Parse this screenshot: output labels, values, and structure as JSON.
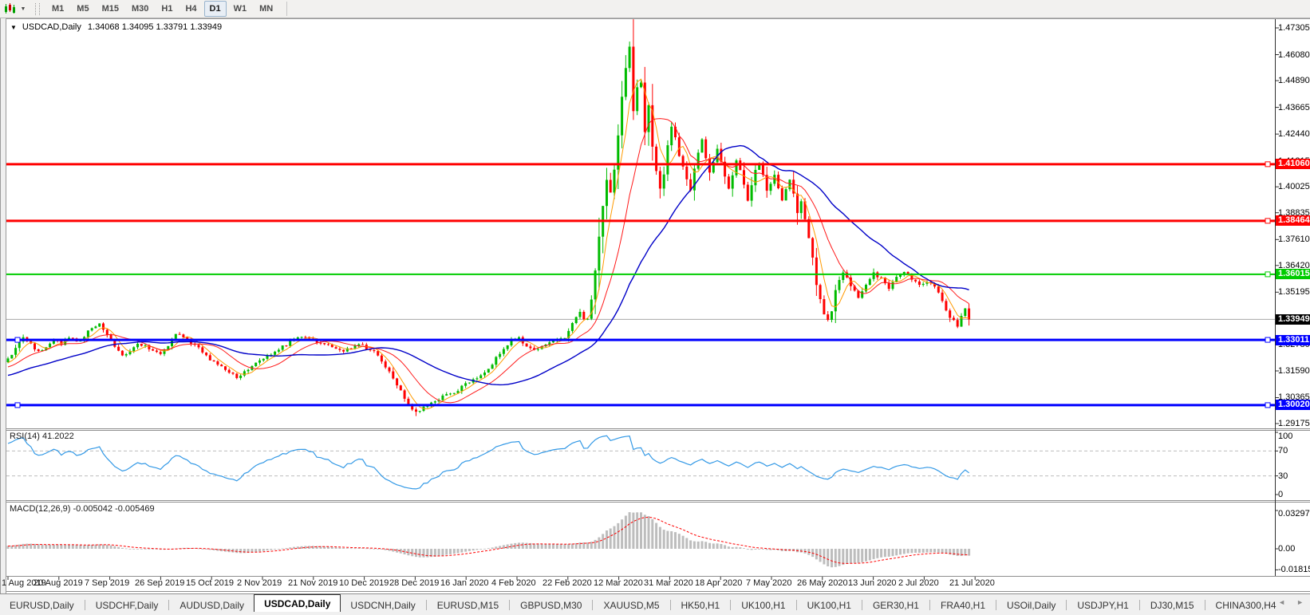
{
  "toolbar": {
    "chart_icon": "mini-candles",
    "dropdown_arrow": "▼",
    "timeframes": [
      "M1",
      "M5",
      "M15",
      "M30",
      "H1",
      "H4",
      "D1",
      "W1",
      "MN"
    ],
    "selected_timeframe": "D1"
  },
  "chart_window": {
    "title_arrow": "▼",
    "symbol": "USDCAD,Daily",
    "quotes": "1.34068 1.34095 1.33791 1.33949",
    "open": "1.34068",
    "high": "1.34095",
    "low": "1.33791",
    "close": "1.33949"
  },
  "price_axis": {
    "ticks": [
      "1.47305",
      "1.46080",
      "1.44890",
      "1.43665",
      "1.42440",
      "1.41215",
      "1.40025",
      "1.38835",
      "1.37610",
      "1.36420",
      "1.35195",
      "1.33970",
      "1.32780",
      "1.31590",
      "1.30365",
      "1.29175"
    ]
  },
  "horizontal_lines": [
    {
      "value": "1.41060",
      "price": 1.4106,
      "color": "#ff0000",
      "thickness": 3
    },
    {
      "value": "1.38464",
      "price": 1.38464,
      "color": "#ff0000",
      "thickness": 3
    },
    {
      "value": "1.36015",
      "price": 1.36015,
      "color": "#00cc00",
      "thickness": 2
    },
    {
      "value": "1.33011",
      "price": 1.33011,
      "color": "#0000ff",
      "thickness": 3,
      "left_handle": true
    },
    {
      "value": "1.30020",
      "price": 1.3002,
      "color": "#0000ff",
      "thickness": 3,
      "left_handle": true
    }
  ],
  "current_price": {
    "value": "1.33949",
    "price": 1.33949,
    "badge_bg": "#000000",
    "line_color": "#a8a8a8"
  },
  "rsi_panel": {
    "label": "RSI(14) 41.2022",
    "indicator": "RSI",
    "period": 14,
    "value": 41.2022,
    "axis_labels": [
      "100",
      "70",
      "30",
      "0"
    ],
    "axis_values": [
      100,
      70,
      30,
      0
    ],
    "level_lines": [
      70,
      30
    ],
    "line_color": "#3399e6",
    "level_color": "#bcbcbc"
  },
  "macd_panel": {
    "label": "MACD(12,26,9) -0.005042 -0.005469",
    "indicator": "MACD",
    "fast": 12,
    "slow": 26,
    "signal_period": 9,
    "macd_value": -0.005042,
    "signal_value": -0.005469,
    "axis_labels": [
      "0.032972",
      "0.00",
      "-0.018154"
    ],
    "axis_values": [
      0.032972,
      0,
      -0.018154
    ],
    "histogram_color": "#bdbdbd",
    "signal_color": "#ff0000"
  },
  "date_axis": {
    "labels": [
      "1 Aug 2019",
      "20 Aug 2019",
      "7 Sep 2019",
      "26 Sep 2019",
      "15 Oct 2019",
      "2 Nov 2019",
      "21 Nov 2019",
      "10 Dec 2019",
      "28 Dec 2019",
      "16 Jan 2020",
      "4 Feb 2020",
      "22 Feb 2020",
      "12 Mar 2020",
      "31 Mar 2020",
      "18 Apr 2020",
      "7 May 2020",
      "26 May 2020",
      "13 Jun 2020",
      "2 Jul 2020",
      "21 Jul 2020"
    ]
  },
  "tab_bar": {
    "tabs": [
      "EURUSD,Daily",
      "USDCHF,Daily",
      "AUDUSD,Daily",
      "USDCAD,Daily",
      "USDCNH,Daily",
      "EURUSD,M15",
      "GBPUSD,M30",
      "XAUUSD,M5",
      "HK50,H1",
      "UK100,H1",
      "UK100,H1",
      "GER30,H1",
      "FRA40,H1",
      "USOil,Daily",
      "USDJPY,H1",
      "DJ30,M15",
      "CHINA300,H4"
    ],
    "selected_tab": "USDCAD,Daily",
    "scroll_left_icon": "◄",
    "scroll_right_icon": "►"
  },
  "chart_data": {
    "type": "candlestick",
    "symbol": "USDCAD",
    "timeframe": "Daily",
    "ylim": [
      1.29175,
      1.47305
    ],
    "bar_count": 253,
    "up_color": "#00bb00",
    "down_color": "#ff0000",
    "moving_averages": [
      {
        "period": 5,
        "color": "#ff9a00",
        "width": 1
      },
      {
        "period": 13,
        "color": "#ff1a1a",
        "width": 1
      },
      {
        "period": 34,
        "color": "#0000c8",
        "width": 1.4
      }
    ],
    "extremes": {
      "peak_index": 163,
      "peak_high": 1.4668,
      "trough_index": 107,
      "trough_low": 1.2952
    },
    "close_anchors": [
      [
        0,
        1.3215
      ],
      [
        2,
        1.3265
      ],
      [
        4,
        1.331
      ],
      [
        6,
        1.328
      ],
      [
        8,
        1.3245
      ],
      [
        10,
        1.326
      ],
      [
        12,
        1.33
      ],
      [
        14,
        1.3285
      ],
      [
        16,
        1.331
      ],
      [
        18,
        1.329
      ],
      [
        20,
        1.332
      ],
      [
        22,
        1.3355
      ],
      [
        24,
        1.338
      ],
      [
        26,
        1.333
      ],
      [
        28,
        1.327
      ],
      [
        30,
        1.3225
      ],
      [
        32,
        1.325
      ],
      [
        34,
        1.328
      ],
      [
        36,
        1.327
      ],
      [
        38,
        1.325
      ],
      [
        40,
        1.324
      ],
      [
        42,
        1.328
      ],
      [
        44,
        1.333
      ],
      [
        46,
        1.331
      ],
      [
        48,
        1.329
      ],
      [
        50,
        1.3265
      ],
      [
        52,
        1.3225
      ],
      [
        54,
        1.3195
      ],
      [
        56,
        1.3175
      ],
      [
        58,
        1.315
      ],
      [
        60,
        1.313
      ],
      [
        62,
        1.3155
      ],
      [
        64,
        1.318
      ],
      [
        66,
        1.321
      ],
      [
        68,
        1.323
      ],
      [
        70,
        1.3245
      ],
      [
        72,
        1.327
      ],
      [
        74,
        1.329
      ],
      [
        76,
        1.3305
      ],
      [
        78,
        1.331
      ],
      [
        80,
        1.33
      ],
      [
        82,
        1.329
      ],
      [
        84,
        1.328
      ],
      [
        86,
        1.326
      ],
      [
        88,
        1.324
      ],
      [
        90,
        1.327
      ],
      [
        92,
        1.3285
      ],
      [
        94,
        1.326
      ],
      [
        96,
        1.3245
      ],
      [
        98,
        1.3205
      ],
      [
        100,
        1.316
      ],
      [
        102,
        1.31
      ],
      [
        104,
        1.303
      ],
      [
        106,
        1.2985
      ],
      [
        107,
        1.297
      ],
      [
        108,
        1.298
      ],
      [
        110,
        1.2995
      ],
      [
        112,
        1.302
      ],
      [
        114,
        1.3045
      ],
      [
        116,
        1.306
      ],
      [
        118,
        1.307
      ],
      [
        120,
        1.31
      ],
      [
        122,
        1.3115
      ],
      [
        124,
        1.314
      ],
      [
        126,
        1.3165
      ],
      [
        128,
        1.3215
      ],
      [
        130,
        1.326
      ],
      [
        132,
        1.3295
      ],
      [
        134,
        1.3305
      ],
      [
        136,
        1.3275
      ],
      [
        138,
        1.3255
      ],
      [
        140,
        1.3265
      ],
      [
        142,
        1.329
      ],
      [
        144,
        1.33
      ],
      [
        146,
        1.331
      ],
      [
        148,
        1.338
      ],
      [
        150,
        1.343
      ],
      [
        151,
        1.339
      ],
      [
        152,
        1.34
      ],
      [
        153,
        1.348
      ],
      [
        154,
        1.362
      ],
      [
        155,
        1.378
      ],
      [
        156,
        1.392
      ],
      [
        157,
        1.403
      ],
      [
        158,
        1.397
      ],
      [
        159,
        1.408
      ],
      [
        160,
        1.423
      ],
      [
        161,
        1.442
      ],
      [
        162,
        1.455
      ],
      [
        163,
        1.464
      ],
      [
        164,
        1.435
      ],
      [
        165,
        1.446
      ],
      [
        166,
        1.448
      ],
      [
        167,
        1.426
      ],
      [
        168,
        1.438
      ],
      [
        169,
        1.418
      ],
      [
        170,
        1.408
      ],
      [
        171,
        1.399
      ],
      [
        172,
        1.406
      ],
      [
        173,
        1.419
      ],
      [
        174,
        1.428
      ],
      [
        175,
        1.423
      ],
      [
        176,
        1.415
      ],
      [
        177,
        1.409
      ],
      [
        178,
        1.403
      ],
      [
        179,
        1.398
      ],
      [
        180,
        1.409
      ],
      [
        181,
        1.416
      ],
      [
        182,
        1.422
      ],
      [
        183,
        1.413
      ],
      [
        184,
        1.406
      ],
      [
        185,
        1.411
      ],
      [
        186,
        1.418
      ],
      [
        187,
        1.412
      ],
      [
        188,
        1.405
      ],
      [
        189,
        1.399
      ],
      [
        190,
        1.406
      ],
      [
        191,
        1.413
      ],
      [
        192,
        1.408
      ],
      [
        193,
        1.402
      ],
      [
        194,
        1.394
      ],
      [
        195,
        1.401
      ],
      [
        196,
        1.408
      ],
      [
        197,
        1.411
      ],
      [
        198,
        1.405
      ],
      [
        199,
        1.398
      ],
      [
        200,
        1.402
      ],
      [
        201,
        1.406
      ],
      [
        202,
        1.399
      ],
      [
        203,
        1.394
      ],
      [
        204,
        1.399
      ],
      [
        205,
        1.403
      ],
      [
        206,
        1.397
      ],
      [
        207,
        1.389
      ],
      [
        208,
        1.393
      ],
      [
        209,
        1.385
      ],
      [
        210,
        1.376
      ],
      [
        211,
        1.368
      ],
      [
        212,
        1.356
      ],
      [
        213,
        1.348
      ],
      [
        214,
        1.342
      ],
      [
        215,
        1.339
      ],
      [
        216,
        1.344
      ],
      [
        217,
        1.3535
      ],
      [
        219,
        1.361
      ],
      [
        221,
        1.3555
      ],
      [
        223,
        1.35
      ],
      [
        225,
        1.356
      ],
      [
        227,
        1.361
      ],
      [
        229,
        1.358
      ],
      [
        231,
        1.354
      ],
      [
        233,
        1.359
      ],
      [
        235,
        1.362
      ],
      [
        237,
        1.358
      ],
      [
        239,
        1.3555
      ],
      [
        241,
        1.357
      ],
      [
        243,
        1.354
      ],
      [
        245,
        1.348
      ],
      [
        247,
        1.3405
      ],
      [
        249,
        1.3365
      ],
      [
        250,
        1.3415
      ],
      [
        251,
        1.344
      ],
      [
        252,
        1.3395
      ]
    ]
  }
}
